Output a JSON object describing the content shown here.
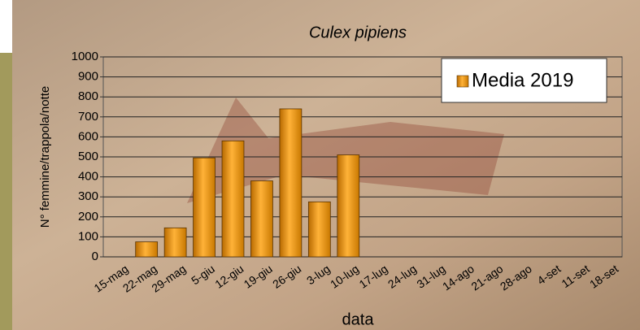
{
  "chart_data": {
    "type": "bar",
    "title": "Culex pipiens",
    "x_label": "data",
    "y_label": "N° femmine/trappola/notte",
    "categories": [
      "15-mag",
      "22-mag",
      "29-mag",
      "5-giu",
      "12-giu",
      "19-giu",
      "26-giu",
      "3-lug",
      "10-lug",
      "17-lug",
      "24-lug",
      "31-lug",
      "14-ago",
      "21-ago",
      "28-ago",
      "4-set",
      "11-set",
      "18-set"
    ],
    "series": [
      {
        "name": "Media 2019",
        "color": "#e8900c",
        "values": [
          0,
          75,
          145,
          495,
          580,
          380,
          740,
          275,
          510,
          null,
          null,
          null,
          null,
          null,
          null,
          null,
          null,
          null
        ]
      }
    ],
    "ylim": [
      0,
      1000
    ],
    "yticks": [
      0,
      100,
      200,
      300,
      400,
      500,
      600,
      700,
      800,
      900,
      1000
    ],
    "grid": true,
    "legend": "top-right"
  }
}
